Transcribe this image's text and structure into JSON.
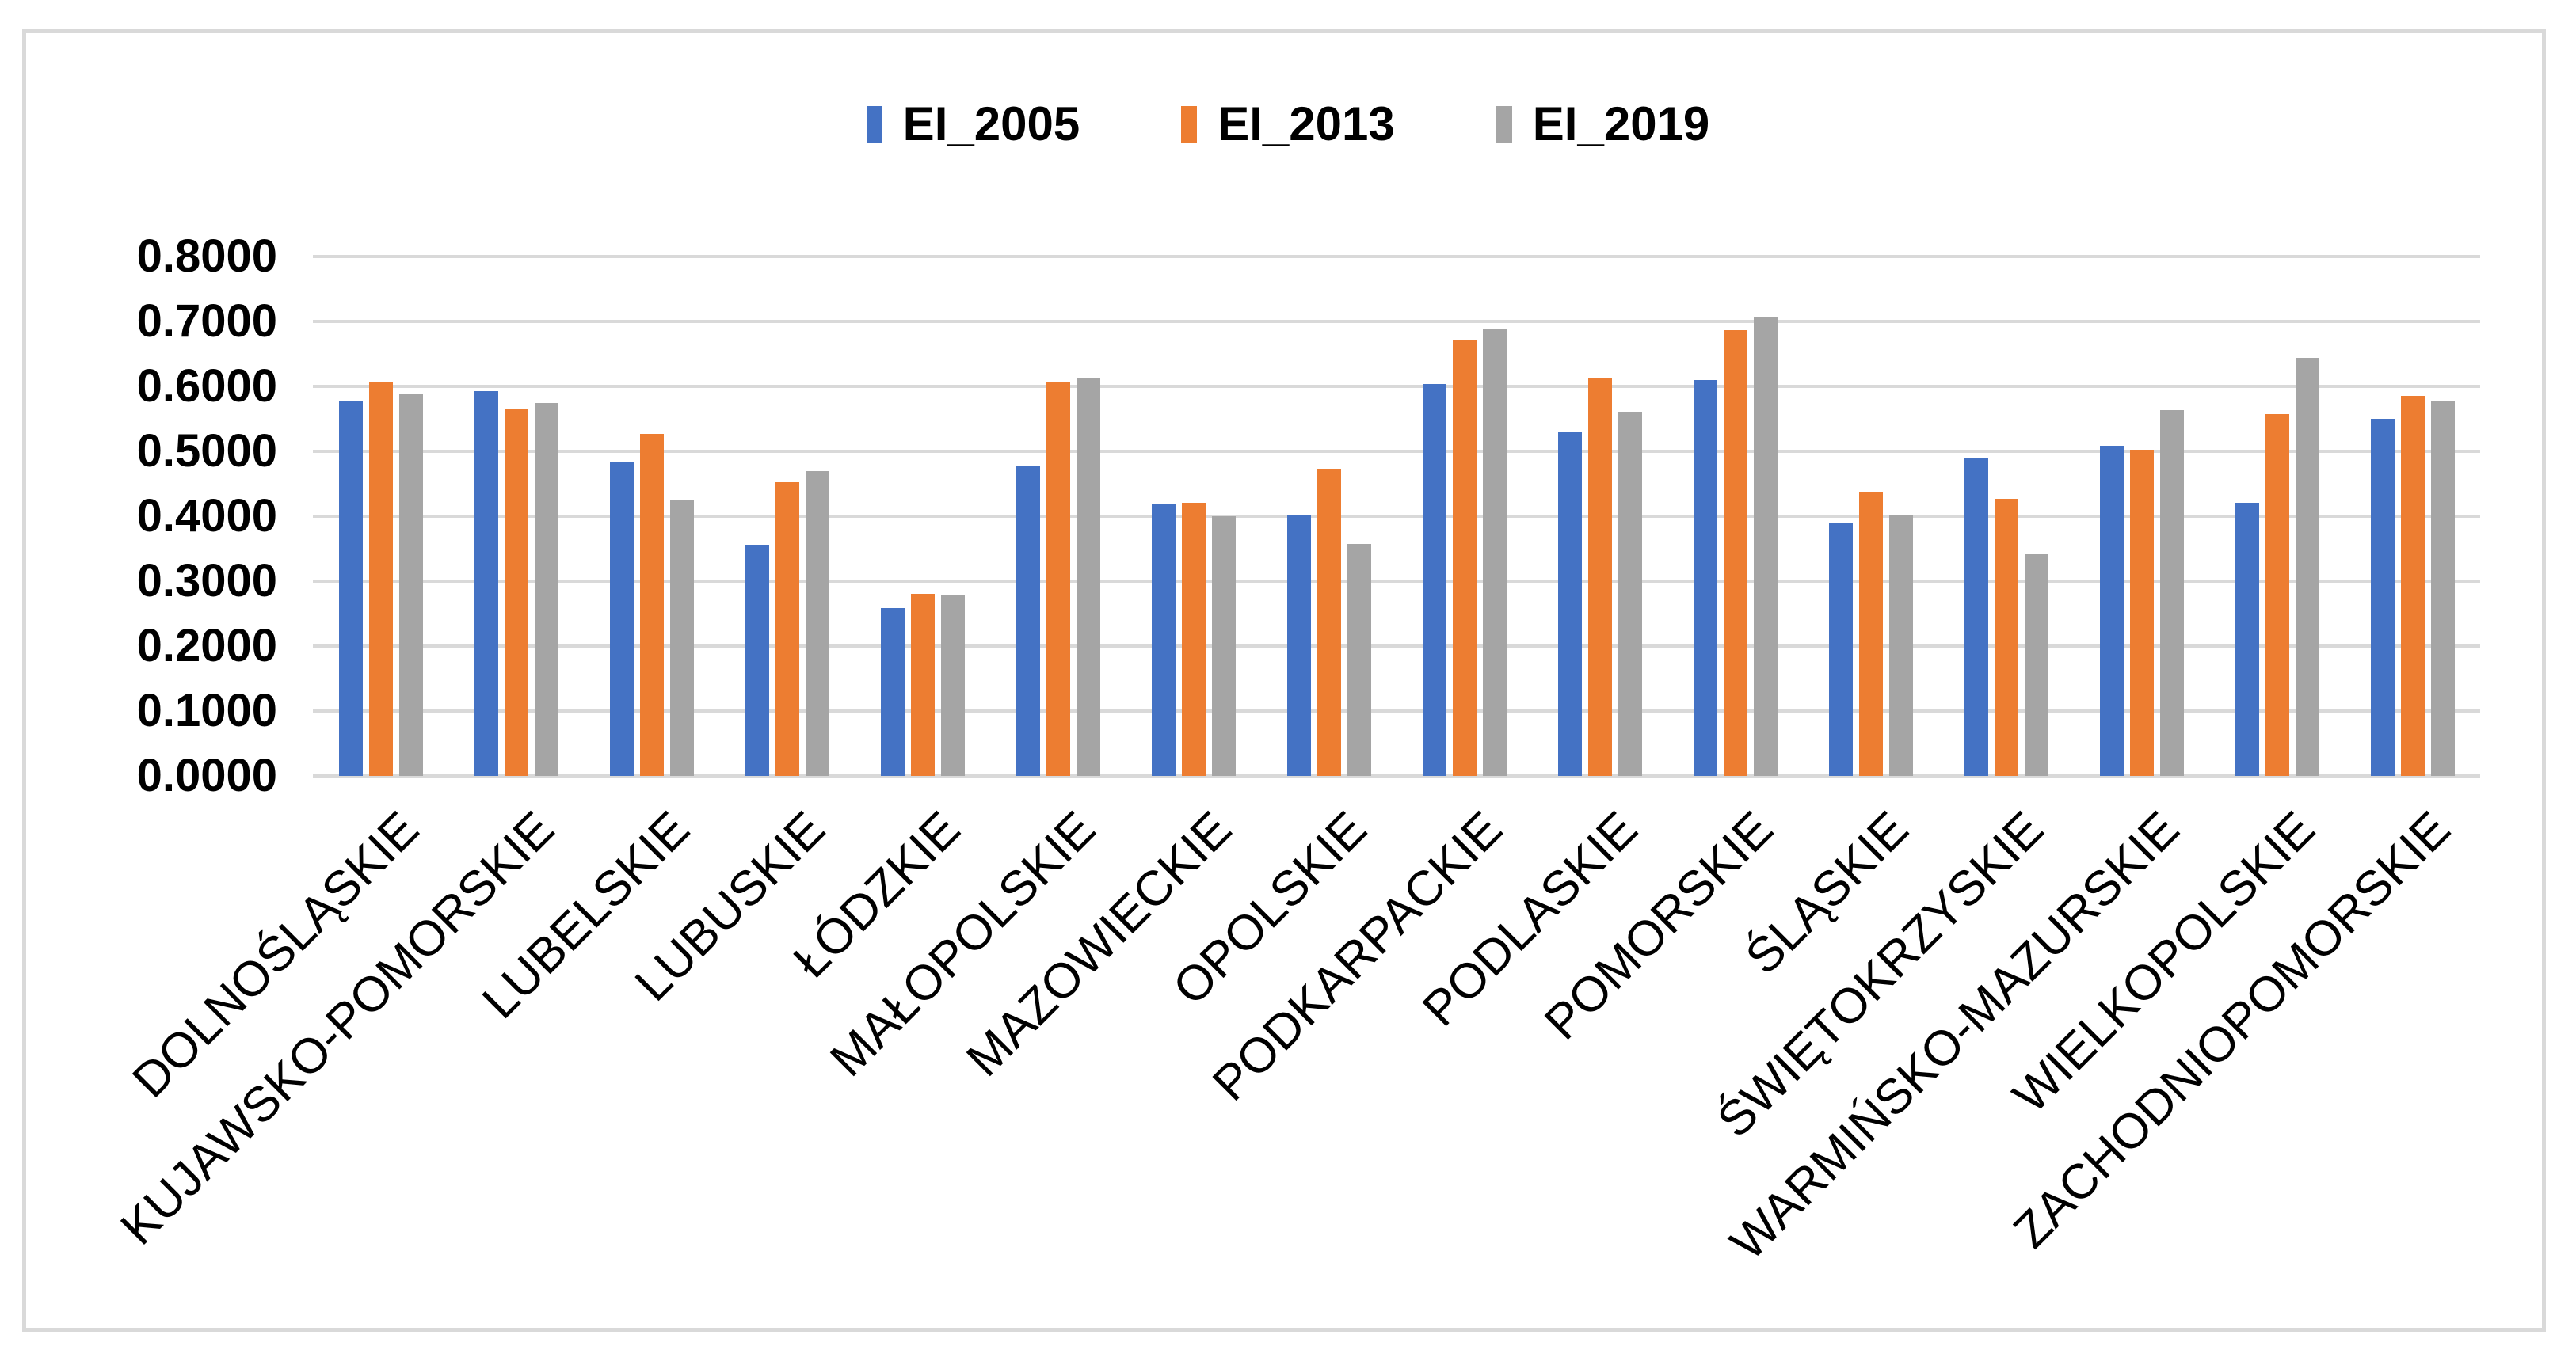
{
  "chart_data": {
    "type": "bar",
    "title": "",
    "categories": [
      "DOLNOŚLĄSKIE",
      "KUJAWSKO-POMORSKIE",
      "LUBELSKIE",
      "LUBUSKIE",
      "ŁÓDZKIE",
      "MAŁOPOLSKIE",
      "MAZOWIECKIE",
      "OPOLSKIE",
      "PODKARPACKIE",
      "PODLASKIE",
      "POMORSKIE",
      "ŚLĄSKIE",
      "ŚWIĘTOKRZYSKIE",
      "WARMIŃSKO-MAZURSKIE",
      "WIELKOPOLSKIE",
      "ZACHODNIOPOMORSKIE"
    ],
    "series": [
      {
        "name": "EI_2005",
        "color": "#4472C4",
        "values": [
          0.578,
          0.593,
          0.483,
          0.356,
          0.258,
          0.477,
          0.42,
          0.401,
          0.604,
          0.53,
          0.61,
          0.39,
          0.49,
          0.508,
          0.421,
          0.55
        ]
      },
      {
        "name": "EI_2013",
        "color": "#ED7D31",
        "values": [
          0.607,
          0.565,
          0.527,
          0.453,
          0.281,
          0.606,
          0.421,
          0.473,
          0.671,
          0.614,
          0.687,
          0.438,
          0.427,
          0.503,
          0.557,
          0.585
        ]
      },
      {
        "name": "EI_2019",
        "color": "#A5A5A5",
        "values": [
          0.588,
          0.574,
          0.426,
          0.47,
          0.279,
          0.612,
          0.4,
          0.357,
          0.688,
          0.561,
          0.706,
          0.402,
          0.341,
          0.564,
          0.644,
          0.577
        ]
      }
    ],
    "y_axis": {
      "min": 0.0,
      "max": 0.8,
      "step": 0.1,
      "tick_labels": [
        "0.0000",
        "0.1000",
        "0.2000",
        "0.3000",
        "0.4000",
        "0.5000",
        "0.6000",
        "0.7000",
        "0.8000"
      ]
    },
    "grid": "horizontal-only",
    "legend_position": "top-center",
    "xlabel": "",
    "ylabel": ""
  },
  "colors": {
    "background": "#FFFFFF",
    "frame_border": "#D9D9D9",
    "gridline": "#D9D9D9",
    "text": "#000000"
  }
}
